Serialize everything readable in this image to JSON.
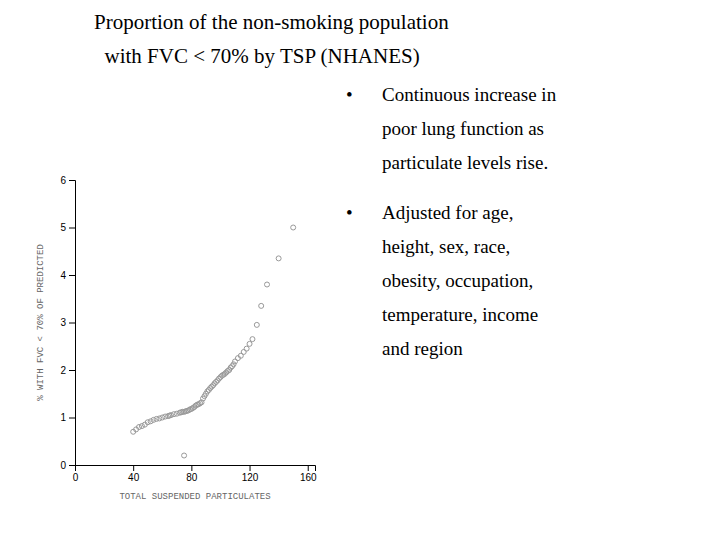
{
  "chart_data": {
    "type": "scatter",
    "title": "Proportion of the non-smoking population",
    "subtitle": "  with FVC < 70% by TSP (NHANES)",
    "series": [
      {
        "x": [
          40,
          42,
          44,
          46,
          48,
          50,
          52,
          54,
          56,
          58,
          60,
          62,
          64,
          65,
          66,
          68,
          70,
          72,
          73,
          74,
          75,
          76,
          77,
          78,
          79,
          80,
          81,
          82,
          83,
          84,
          85,
          86,
          87,
          88,
          89,
          90,
          91,
          92,
          93,
          94,
          95,
          96,
          97,
          98,
          99,
          100,
          101,
          102,
          103,
          104,
          105,
          106,
          107,
          108,
          109,
          110,
          112,
          114,
          116,
          118,
          120,
          122,
          125,
          128,
          132,
          140,
          150
        ],
        "values": [
          0.7,
          0.75,
          0.8,
          0.82,
          0.85,
          0.9,
          0.92,
          0.95,
          0.97,
          0.98,
          1.0,
          1.02,
          1.03,
          1.04,
          1.05,
          1.07,
          1.08,
          1.1,
          1.11,
          1.12,
          1.12,
          1.13,
          1.14,
          1.15,
          1.17,
          1.18,
          1.2,
          1.22,
          1.25,
          1.27,
          1.28,
          1.3,
          1.32,
          1.4,
          1.45,
          1.5,
          1.55,
          1.58,
          1.62,
          1.65,
          1.68,
          1.72,
          1.75,
          1.78,
          1.82,
          1.85,
          1.88,
          1.9,
          1.92,
          1.95,
          1.98,
          2.0,
          2.05,
          2.08,
          2.12,
          2.18,
          2.25,
          2.3,
          2.38,
          2.45,
          2.55,
          2.65,
          2.95,
          3.35,
          3.8,
          4.35,
          5.0
        ],
        "color": "#999999",
        "marker": "open-circle"
      },
      {
        "x": [
          75
        ],
        "values": [
          0.2
        ],
        "color": "#999999",
        "marker": "open-circle"
      }
    ],
    "xlabel": "TOTAL SUSPENDED PARTICULATES",
    "ylabel": "% WITH FVC < 70% OF PREDICTED",
    "xlim": [
      0,
      165
    ],
    "ylim": [
      0,
      6
    ],
    "xticks": [
      0,
      40,
      80,
      120,
      160
    ],
    "yticks": [
      0,
      1,
      2,
      3,
      4,
      5,
      6
    ],
    "grid": false,
    "annotations": [
      {
        "bullet": "•",
        "lines": [
          "Continuous increase in",
          "poor lung function as",
          "particulate levels rise."
        ]
      },
      {
        "bullet": "•",
        "lines": [
          "Adjusted for age,",
          "height, sex, race,",
          "obesity, occupation,",
          "temperature, income",
          "and region"
        ]
      }
    ]
  }
}
